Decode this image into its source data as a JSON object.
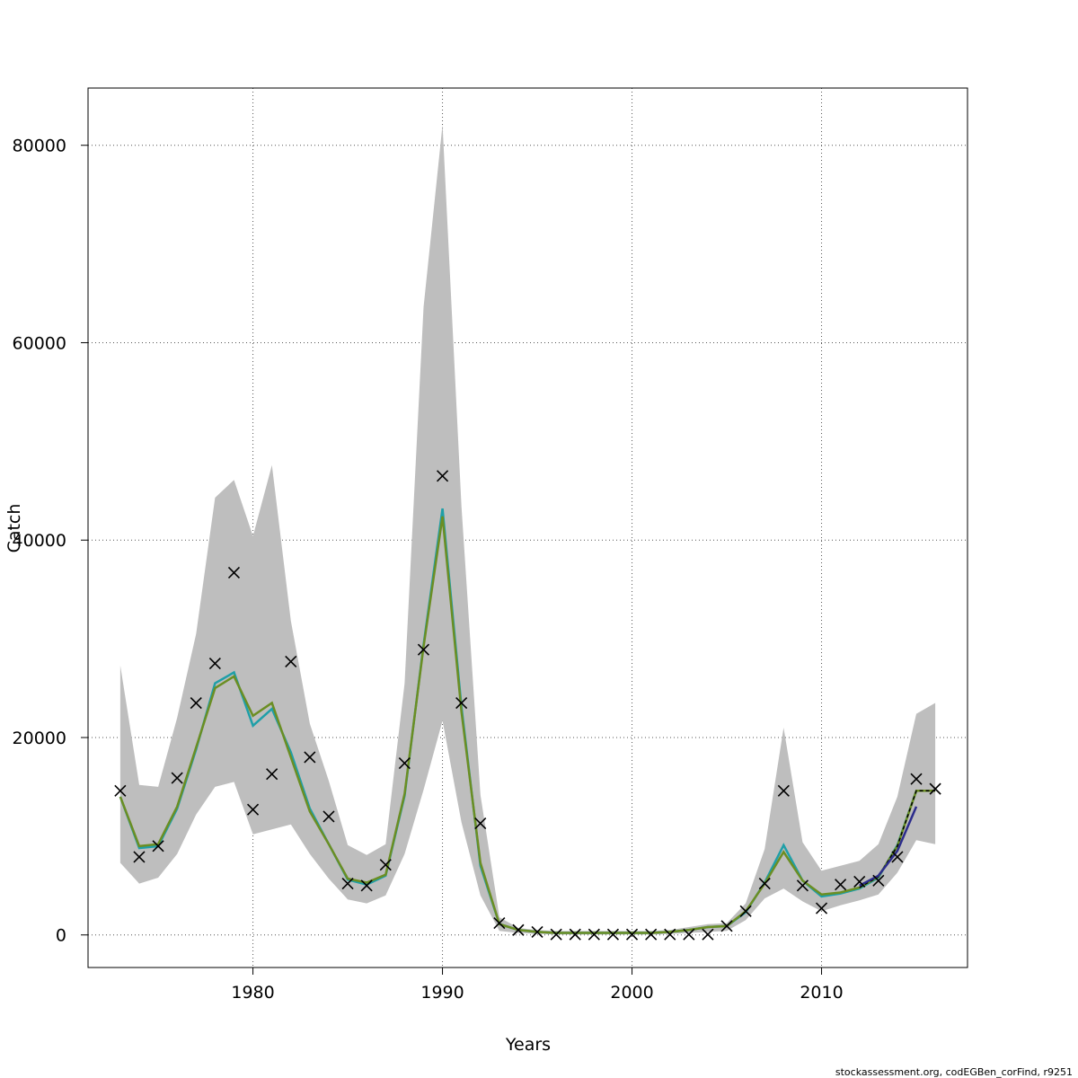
{
  "chart_data": {
    "type": "line",
    "xlabel": "Years",
    "ylabel": "Catch",
    "xlim": [
      1971.3,
      2017.7
    ],
    "ylim": [
      -3300,
      85800
    ],
    "x_ticks": [
      1980,
      1990,
      2000,
      2010
    ],
    "y_ticks": [
      0,
      20000,
      40000,
      60000,
      80000
    ],
    "grid": true,
    "colors": {
      "band": "#bebebe",
      "observed": "#000000",
      "fit": "#6b8e23",
      "fit_alt": "#1f9fa8",
      "retro_tail": "#2c2c8c",
      "frame": "#000000",
      "grid": "#555555"
    },
    "x": [
      1973,
      1974,
      1975,
      1976,
      1977,
      1978,
      1979,
      1980,
      1981,
      1982,
      1983,
      1984,
      1985,
      1986,
      1987,
      1988,
      1989,
      1990,
      1991,
      1992,
      1993,
      1994,
      1995,
      1996,
      1997,
      1998,
      1999,
      2000,
      2001,
      2002,
      2003,
      2004,
      2005,
      2006,
      2007,
      2008,
      2009,
      2010,
      2011,
      2012,
      2013,
      2014,
      2015,
      2016
    ],
    "band_upper": [
      27300,
      15200,
      15000,
      22000,
      30500,
      44300,
      46100,
      40400,
      47600,
      31800,
      21400,
      15600,
      9100,
      8100,
      9200,
      25500,
      63600,
      82100,
      43400,
      14200,
      1800,
      700,
      500,
      400,
      400,
      400,
      400,
      400,
      400,
      500,
      800,
      1100,
      1200,
      3200,
      8700,
      21000,
      9400,
      6500,
      7000,
      7500,
      9200,
      14000,
      22400,
      23500
    ],
    "band_lower": [
      7300,
      5200,
      5800,
      8200,
      12200,
      15000,
      15500,
      10200,
      10700,
      11200,
      8200,
      5700,
      3600,
      3200,
      4000,
      8200,
      14700,
      21700,
      11400,
      4000,
      400,
      200,
      100,
      50,
      50,
      50,
      50,
      50,
      50,
      100,
      200,
      300,
      400,
      1500,
      3700,
      4700,
      3400,
      2400,
      3000,
      3500,
      4100,
      6300,
      9600,
      9200
    ],
    "fit": [
      14000,
      9000,
      9200,
      13000,
      19000,
      25000,
      26200,
      22200,
      23500,
      18000,
      12500,
      9200,
      5700,
      5300,
      6100,
      14300,
      29200,
      42400,
      22600,
      7300,
      1100,
      500,
      300,
      200,
      200,
      200,
      200,
      200,
      200,
      300,
      500,
      800,
      900,
      2400,
      5200,
      8400,
      5500,
      4100,
      4300,
      4800,
      5900,
      9000,
      14600,
      14600
    ],
    "fit_alt": [
      14000,
      8800,
      9000,
      12800,
      18800,
      25500,
      26600,
      21200,
      22900,
      18500,
      12800,
      9200,
      5600,
      5100,
      6000,
      14100,
      29400,
      43200,
      23100,
      7000,
      1100,
      500,
      300,
      200,
      200,
      200,
      200,
      200,
      200,
      300,
      500,
      800,
      900,
      2300,
      5300,
      9100,
      5500,
      3900,
      4200,
      4700,
      5800,
      9100,
      14600,
      14600
    ],
    "retro_tail": {
      "x": [
        2012,
        2013,
        2014,
        2015
      ],
      "y": [
        5000,
        6000,
        8500,
        13000
      ]
    },
    "observed": [
      14600,
      7900,
      9000,
      15900,
      23500,
      27500,
      36700,
      12700,
      16300,
      27700,
      18000,
      12000,
      5200,
      5000,
      7100,
      17400,
      28900,
      46500,
      23500,
      11300,
      1200,
      500,
      300,
      50,
      50,
      50,
      50,
      50,
      50,
      50,
      50,
      50,
      900,
      2400,
      5200,
      14600,
      5000,
      2700,
      5100,
      5400,
      5500,
      7900,
      15800,
      14800
    ]
  },
  "footer": "stockassessment.org, codEGBen_corFind, r9251"
}
